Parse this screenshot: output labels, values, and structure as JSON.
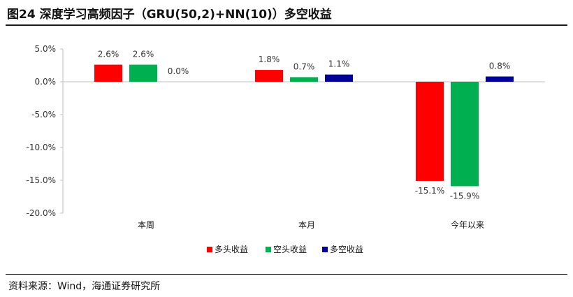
{
  "header": {
    "title": "图24 深度学习高频因子（GRU(50,2)+NN(10)）多空收益"
  },
  "footer": {
    "source": "资料来源：Wind，海通证券研究所"
  },
  "chart_data": {
    "type": "bar",
    "title": "",
    "xlabel": "",
    "ylabel": "",
    "categories": [
      "本周",
      "本月",
      "今年以来"
    ],
    "series": [
      {
        "name": "多头收益",
        "color": "#ff0000",
        "values": [
          2.6,
          1.8,
          -15.1
        ],
        "labels": [
          "2.6%",
          "1.8%",
          "-15.1%"
        ]
      },
      {
        "name": "空头收益",
        "color": "#00b050",
        "values": [
          2.6,
          0.7,
          -15.9
        ],
        "labels": [
          "2.6%",
          "0.7%",
          "-15.9%"
        ]
      },
      {
        "name": "多空收益",
        "color": "#000099",
        "values": [
          0.0,
          1.1,
          0.8
        ],
        "labels": [
          "0.0%",
          "1.1%",
          "0.8%"
        ]
      }
    ],
    "ylim": [
      -20,
      5
    ],
    "yticks": [
      5,
      0,
      -5,
      -10,
      -15,
      -20
    ],
    "ytick_labels": [
      "5.0%",
      "0.0%",
      "-5.0%",
      "-10.0%",
      "-15.0%",
      "-20.0%"
    ],
    "grid": false,
    "legend_position": "bottom"
  }
}
